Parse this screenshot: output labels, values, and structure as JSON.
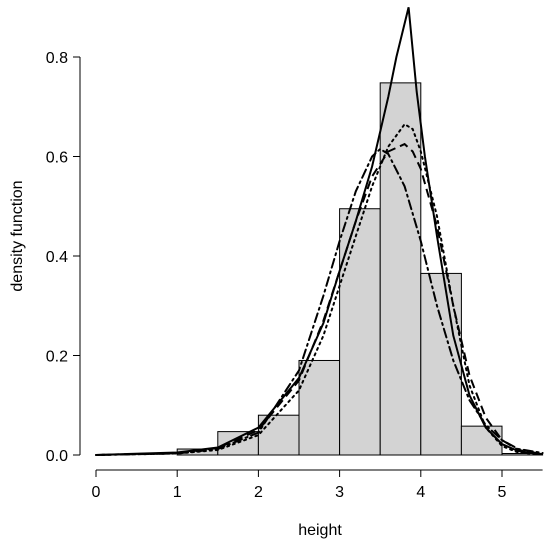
{
  "chart_data": {
    "type": "histogram",
    "xlabel": "height",
    "ylabel": "density function",
    "xlim": [
      0,
      5.5
    ],
    "ylim": [
      0,
      0.9
    ],
    "x_ticks": [
      0,
      1,
      2,
      3,
      4,
      5
    ],
    "y_ticks": [
      0.0,
      0.2,
      0.4,
      0.6,
      0.8
    ],
    "x_tick_labels": [
      "0",
      "1",
      "2",
      "3",
      "4",
      "5"
    ],
    "y_tick_labels": [
      "0.0",
      "0.2",
      "0.4",
      "0.6",
      "0.8"
    ],
    "bins": [
      {
        "x0": 1.0,
        "x1": 1.5,
        "value": 0.012
      },
      {
        "x0": 1.5,
        "x1": 2.0,
        "value": 0.047
      },
      {
        "x0": 2.0,
        "x1": 2.5,
        "value": 0.08
      },
      {
        "x0": 2.5,
        "x1": 3.0,
        "value": 0.19
      },
      {
        "x0": 3.0,
        "x1": 3.5,
        "value": 0.495
      },
      {
        "x0": 3.5,
        "x1": 4.0,
        "value": 0.748
      },
      {
        "x0": 4.0,
        "x1": 4.5,
        "value": 0.365
      },
      {
        "x0": 4.5,
        "x1": 5.0,
        "value": 0.058
      },
      {
        "x0": 5.0,
        "x1": 5.5,
        "value": 0.003
      }
    ],
    "series": [
      {
        "style": "solid",
        "x": [
          0.0,
          1.0,
          1.5,
          2.0,
          2.5,
          2.8,
          3.0,
          3.2,
          3.4,
          3.6,
          3.7,
          3.85,
          3.95,
          4.05,
          4.2,
          4.4,
          4.6,
          4.8,
          5.0,
          5.2,
          5.4,
          5.5
        ],
        "y": [
          0.0,
          0.005,
          0.015,
          0.055,
          0.155,
          0.265,
          0.37,
          0.47,
          0.58,
          0.72,
          0.8,
          0.9,
          0.73,
          0.6,
          0.44,
          0.24,
          0.12,
          0.055,
          0.022,
          0.008,
          0.003,
          0.002
        ]
      },
      {
        "style": "dashed",
        "x": [
          0.0,
          1.0,
          1.5,
          2.0,
          2.5,
          2.8,
          3.0,
          3.2,
          3.4,
          3.6,
          3.8,
          3.9,
          4.0,
          4.2,
          4.4,
          4.6,
          4.8,
          5.0,
          5.2,
          5.5
        ],
        "y": [
          0.0,
          0.004,
          0.014,
          0.05,
          0.15,
          0.27,
          0.37,
          0.47,
          0.56,
          0.61,
          0.625,
          0.61,
          0.575,
          0.46,
          0.3,
          0.16,
          0.075,
          0.03,
          0.01,
          0.002
        ]
      },
      {
        "style": "dotted",
        "x": [
          0.0,
          1.0,
          1.5,
          2.0,
          2.5,
          2.8,
          3.0,
          3.2,
          3.4,
          3.6,
          3.8,
          3.9,
          4.0,
          4.2,
          4.4,
          4.6,
          4.8,
          5.0,
          5.2,
          5.5
        ],
        "y": [
          0.0,
          0.003,
          0.01,
          0.04,
          0.13,
          0.24,
          0.34,
          0.44,
          0.54,
          0.62,
          0.665,
          0.655,
          0.61,
          0.48,
          0.3,
          0.14,
          0.055,
          0.018,
          0.005,
          0.001
        ]
      },
      {
        "style": "dotdash",
        "x": [
          0.0,
          1.0,
          1.5,
          2.0,
          2.5,
          2.8,
          3.0,
          3.2,
          3.4,
          3.5,
          3.6,
          3.8,
          4.0,
          4.2,
          4.4,
          4.6,
          4.8,
          5.0,
          5.2,
          5.5
        ],
        "y": [
          0.0,
          0.003,
          0.012,
          0.045,
          0.17,
          0.32,
          0.43,
          0.53,
          0.6,
          0.615,
          0.605,
          0.54,
          0.43,
          0.3,
          0.19,
          0.11,
          0.06,
          0.03,
          0.012,
          0.004
        ]
      }
    ]
  }
}
